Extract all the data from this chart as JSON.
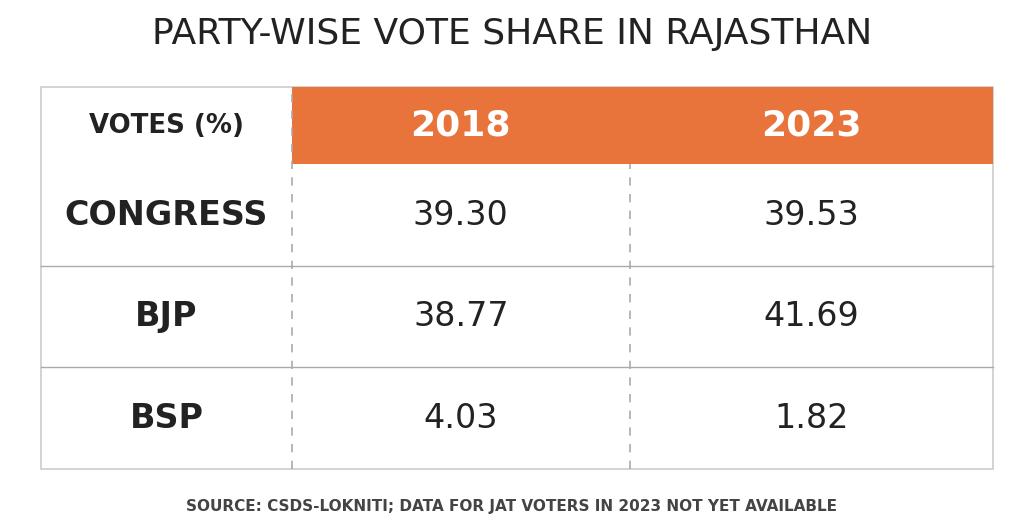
{
  "title": "PARTY-WISE VOTE SHARE IN RAJASTHAN",
  "source_text": "SOURCE: CSDS-LOKNITI; DATA FOR JAT VOTERS IN 2023 NOT YET AVAILABLE",
  "header_col": "VOTES (%)",
  "col_headers": [
    "2018",
    "2023"
  ],
  "rows": [
    {
      "party": "CONGRESS",
      "2018": "39.30",
      "2023": "39.53"
    },
    {
      "party": "BJP",
      "2018": "38.77",
      "2023": "41.69"
    },
    {
      "party": "BSP",
      "2018": "4.03",
      "2023": "1.82"
    }
  ],
  "header_bg": "#E8743B",
  "header_text_color": "#FFFFFF",
  "table_bg": "#FFFFFF",
  "border_color": "#AAAAAA",
  "dashed_line_color": "#AAAAAA",
  "title_color": "#222222",
  "body_text_color": "#222222",
  "source_text_color": "#444444",
  "outer_border_color": "#CCCCCC",
  "title_fontsize": 26,
  "header_fontsize": 26,
  "cell_fontsize": 24,
  "source_fontsize": 11
}
